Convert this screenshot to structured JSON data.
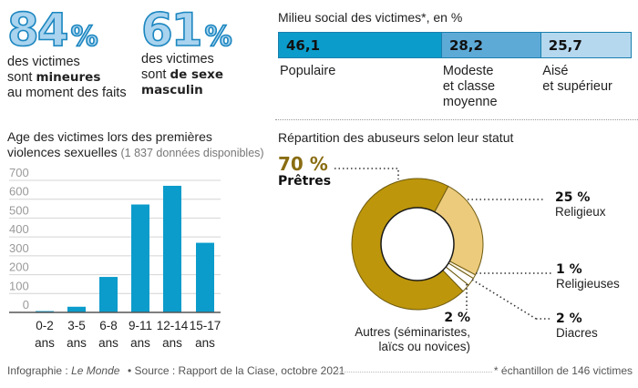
{
  "stats": [
    {
      "number": "84",
      "unit": "%",
      "line1": "des victimes",
      "line2_pre": "sont ",
      "line2_bold": "mineures",
      "line3": "au moment des faits"
    },
    {
      "number": "61",
      "unit": "%",
      "line1": "des victimes",
      "line2_pre": "sont ",
      "line2_bold": "de sexe",
      "line3_bold": "masculin"
    }
  ],
  "social": {
    "title": "Milieu social des victimes*, en %",
    "segments": [
      {
        "value": 46.1,
        "display": "46,1",
        "label_lines": [
          "Populaire"
        ],
        "color": "#0b9ccb"
      },
      {
        "value": 28.2,
        "display": "28,2",
        "label_lines": [
          "Modeste",
          "et classe",
          "moyenne"
        ],
        "color": "#5eaad7"
      },
      {
        "value": 25.7,
        "display": "25,7",
        "label_lines": [
          "Aisé",
          "et supérieur"
        ],
        "color": "#b5d8ef"
      }
    ]
  },
  "age_chart": {
    "title_line1": "Age des victimes lors des premières",
    "title_line2": "violences sexuelles",
    "title_note": "(1 837 données disponibles)"
  },
  "abusers": {
    "title": "Répartition des abuseurs selon leur statut"
  },
  "chart_data": [
    {
      "type": "bar",
      "title": "Age des victimes lors des premières violences sexuelles (1 837 données disponibles)",
      "categories": [
        "0-2 ans",
        "3-5 ans",
        "6-8 ans",
        "9-11 ans",
        "12-14 ans",
        "15-17 ans"
      ],
      "category_lines": [
        [
          "0-2",
          "ans"
        ],
        [
          "3-5",
          "ans"
        ],
        [
          "6-8",
          "ans"
        ],
        [
          "9-11",
          "ans"
        ],
        [
          "12-14",
          "ans"
        ],
        [
          "15-17",
          "ans"
        ]
      ],
      "values": [
        7,
        30,
        188,
        572,
        671,
        369
      ],
      "xlabel": "",
      "ylabel": "",
      "ylim": [
        0,
        700
      ],
      "yticks": [
        0,
        100,
        200,
        300,
        400,
        500,
        600,
        700
      ],
      "grid": true,
      "color": "#0b9ccb"
    },
    {
      "type": "pie",
      "donut": true,
      "title": "Répartition des abuseurs selon leur statut",
      "slices": [
        {
          "name": "Prêtres",
          "value": 70,
          "pct_label": "70 %",
          "color": "#bd960b",
          "label_lines": [
            "Prêtres"
          ]
        },
        {
          "name": "Religieux",
          "value": 25,
          "pct_label": "25 %",
          "color": "#eccb7c",
          "label_lines": [
            "Religieux"
          ]
        },
        {
          "name": "Religieuses",
          "value": 1,
          "pct_label": "1 %",
          "color": "#fdf6e4",
          "label_lines": [
            "Religieuses"
          ]
        },
        {
          "name": "Diacres",
          "value": 2,
          "pct_label": "2 %",
          "color": "#ffffff",
          "label_lines": [
            "Diacres"
          ]
        },
        {
          "name": "Autres (séminaristes, laïcs ou novices)",
          "value": 2,
          "pct_label": "2 %",
          "color": "#ffffff",
          "label_lines": [
            "Autres (séminaristes,",
            "laïcs ou novices)"
          ]
        }
      ],
      "start_angle_deg": 28,
      "slice_order_clockwise": [
        "Religieux",
        "Religieuses",
        "Diacres",
        "Autres (séminaristes, laïcs ou novices)",
        "Prêtres"
      ]
    },
    {
      "type": "bar",
      "orientation": "horizontal-stacked",
      "title": "Milieu social des victimes*, en %",
      "categories": [
        "Populaire",
        "Modeste et classe moyenne",
        "Aisé et supérieur"
      ],
      "values": [
        46.1,
        28.2,
        25.7
      ]
    }
  ],
  "footer": {
    "credit_pre": "Infographie : ",
    "credit_italic": "Le Monde",
    "source": "• Source : Rapport de la Ciase, octobre 2021",
    "note": "* échantillon de 146 victimes"
  }
}
